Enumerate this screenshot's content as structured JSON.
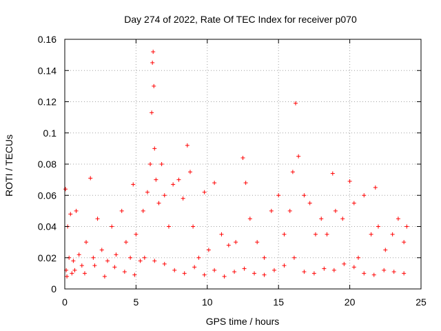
{
  "chart_data": {
    "type": "scatter",
    "title": "Day 274 of 2022, Rate Of TEC Index for receiver p070",
    "xlabel": "GPS time / hours",
    "ylabel": "ROTI / TECUs",
    "xlim": [
      0,
      25
    ],
    "ylim": [
      0,
      0.16
    ],
    "xticks": [
      0,
      5,
      10,
      15,
      20,
      25
    ],
    "xtick_labels": [
      "0",
      "5",
      "10",
      "15",
      "20",
      "25"
    ],
    "yticks": [
      0,
      0.02,
      0.04,
      0.06,
      0.08,
      0.1,
      0.12,
      0.14,
      0.16
    ],
    "ytick_labels": [
      "0",
      "0.02",
      "0.04",
      "0.06",
      "0.08",
      "0.1",
      "0.12",
      "0.14",
      "0.16"
    ],
    "grid": true,
    "marker": "+",
    "color": "#ff0000",
    "series": [
      {
        "name": "ROTI",
        "x": [
          0.05,
          0.1,
          0.2,
          0.3,
          0.4,
          0.5,
          0.6,
          0.8,
          1.0,
          1.2,
          1.5,
          1.8,
          2.0,
          2.3,
          2.6,
          3.0,
          3.3,
          3.6,
          4.0,
          4.3,
          4.6,
          4.8,
          5.0,
          5.3,
          5.5,
          5.8,
          6.0,
          6.1,
          6.15,
          6.2,
          6.25,
          6.3,
          6.4,
          6.6,
          6.8,
          7.0,
          7.3,
          7.6,
          8.0,
          8.3,
          8.6,
          8.8,
          9.0,
          9.4,
          9.8,
          10.1,
          10.5,
          11.0,
          11.5,
          12.0,
          12.5,
          12.7,
          13.0,
          13.5,
          14.0,
          14.5,
          15.0,
          15.4,
          15.8,
          16.0,
          16.2,
          16.4,
          16.8,
          17.2,
          17.6,
          18.0,
          18.4,
          18.8,
          19.0,
          19.5,
          20.0,
          20.3,
          20.6,
          21.0,
          21.5,
          21.8,
          22.0,
          22.5,
          23.0,
          23.4,
          23.8,
          24.0,
          0.15,
          0.7,
          1.4,
          2.1,
          2.8,
          3.5,
          4.2,
          4.9,
          5.6,
          6.3,
          7.0,
          7.7,
          8.4,
          9.1,
          9.8,
          10.5,
          11.2,
          11.9,
          12.6,
          13.3,
          14.0,
          14.7,
          15.4,
          16.1,
          16.8,
          17.5,
          18.2,
          18.9,
          19.6,
          20.3,
          21.0,
          21.7,
          22.4,
          23.1,
          23.8
        ],
        "y": [
          0.064,
          0.012,
          0.04,
          0.02,
          0.048,
          0.01,
          0.018,
          0.05,
          0.022,
          0.015,
          0.03,
          0.071,
          0.02,
          0.045,
          0.025,
          0.018,
          0.04,
          0.022,
          0.05,
          0.03,
          0.02,
          0.067,
          0.035,
          0.018,
          0.05,
          0.062,
          0.08,
          0.113,
          0.145,
          0.152,
          0.13,
          0.09,
          0.07,
          0.055,
          0.08,
          0.06,
          0.04,
          0.067,
          0.07,
          0.058,
          0.092,
          0.075,
          0.04,
          0.02,
          0.062,
          0.025,
          0.068,
          0.035,
          0.028,
          0.03,
          0.084,
          0.068,
          0.045,
          0.03,
          0.02,
          0.05,
          0.06,
          0.035,
          0.05,
          0.075,
          0.119,
          0.085,
          0.06,
          0.055,
          0.035,
          0.045,
          0.035,
          0.074,
          0.05,
          0.045,
          0.069,
          0.055,
          0.02,
          0.06,
          0.035,
          0.065,
          0.04,
          0.025,
          0.035,
          0.045,
          0.03,
          0.04,
          0.008,
          0.012,
          0.01,
          0.015,
          0.008,
          0.014,
          0.011,
          0.009,
          0.02,
          0.018,
          0.016,
          0.012,
          0.01,
          0.014,
          0.009,
          0.012,
          0.008,
          0.011,
          0.013,
          0.01,
          0.009,
          0.012,
          0.015,
          0.02,
          0.011,
          0.01,
          0.013,
          0.012,
          0.016,
          0.014,
          0.01,
          0.009,
          0.012,
          0.011,
          0.01
        ]
      }
    ]
  }
}
